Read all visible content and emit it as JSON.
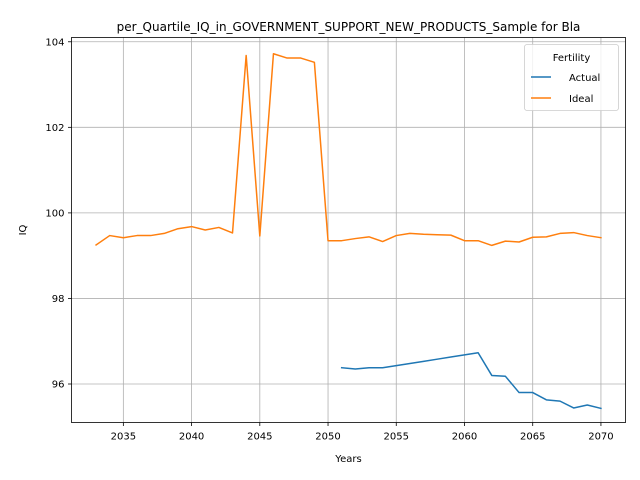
{
  "chart_data": {
    "type": "line",
    "title": "per_Quartile_IQ_in_GOVERNMENT_SUPPORT_NEW_PRODUCTS_Sample for Bla",
    "xlabel": "Years",
    "ylabel": "IQ",
    "xlim": [
      2031.2,
      2071.8
    ],
    "ylim": [
      95.1,
      104.1
    ],
    "xticks": [
      2035,
      2040,
      2045,
      2050,
      2055,
      2060,
      2065,
      2070
    ],
    "yticks": [
      96,
      98,
      100,
      102,
      104
    ],
    "xtick_labels": [
      "2035",
      "2040",
      "2045",
      "2050",
      "2055",
      "2060",
      "2065",
      "2070"
    ],
    "ytick_labels": [
      "96",
      "98",
      "100",
      "102",
      "104"
    ],
    "grid": true,
    "legend": {
      "title": "Fertility",
      "position": "top-right"
    },
    "series": [
      {
        "name": "Actual",
        "color": "#1f77b4",
        "x": [
          2051,
          2052,
          2053,
          2054,
          2055,
          2056,
          2057,
          2058,
          2059,
          2060,
          2061,
          2062,
          2063,
          2064,
          2065,
          2066,
          2067,
          2068,
          2069,
          2070
        ],
        "y": [
          96.38,
          96.35,
          96.38,
          96.38,
          96.43,
          96.48,
          96.53,
          96.58,
          96.63,
          96.68,
          96.73,
          96.2,
          96.18,
          95.8,
          95.8,
          95.63,
          95.6,
          95.44,
          95.51,
          95.43
        ]
      },
      {
        "name": "Ideal",
        "color": "#ff7f0e",
        "x": [
          2033,
          2034,
          2035,
          2036,
          2037,
          2038,
          2039,
          2040,
          2041,
          2042,
          2043,
          2044,
          2045,
          2046,
          2047,
          2048,
          2049,
          2050,
          2051,
          2052,
          2053,
          2054,
          2055,
          2056,
          2057,
          2058,
          2059,
          2060,
          2061,
          2062,
          2063,
          2064,
          2065,
          2066,
          2067,
          2068,
          2069,
          2070
        ],
        "y": [
          99.25,
          99.47,
          99.42,
          99.47,
          99.47,
          99.52,
          99.63,
          99.68,
          99.6,
          99.66,
          99.53,
          103.68,
          99.46,
          103.72,
          103.62,
          103.62,
          103.52,
          99.35,
          99.35,
          99.4,
          99.44,
          99.33,
          99.47,
          99.52,
          99.5,
          99.49,
          99.48,
          99.35,
          99.35,
          99.24,
          99.34,
          99.32,
          99.43,
          99.44,
          99.52,
          99.54,
          99.47,
          99.42
        ]
      }
    ]
  }
}
